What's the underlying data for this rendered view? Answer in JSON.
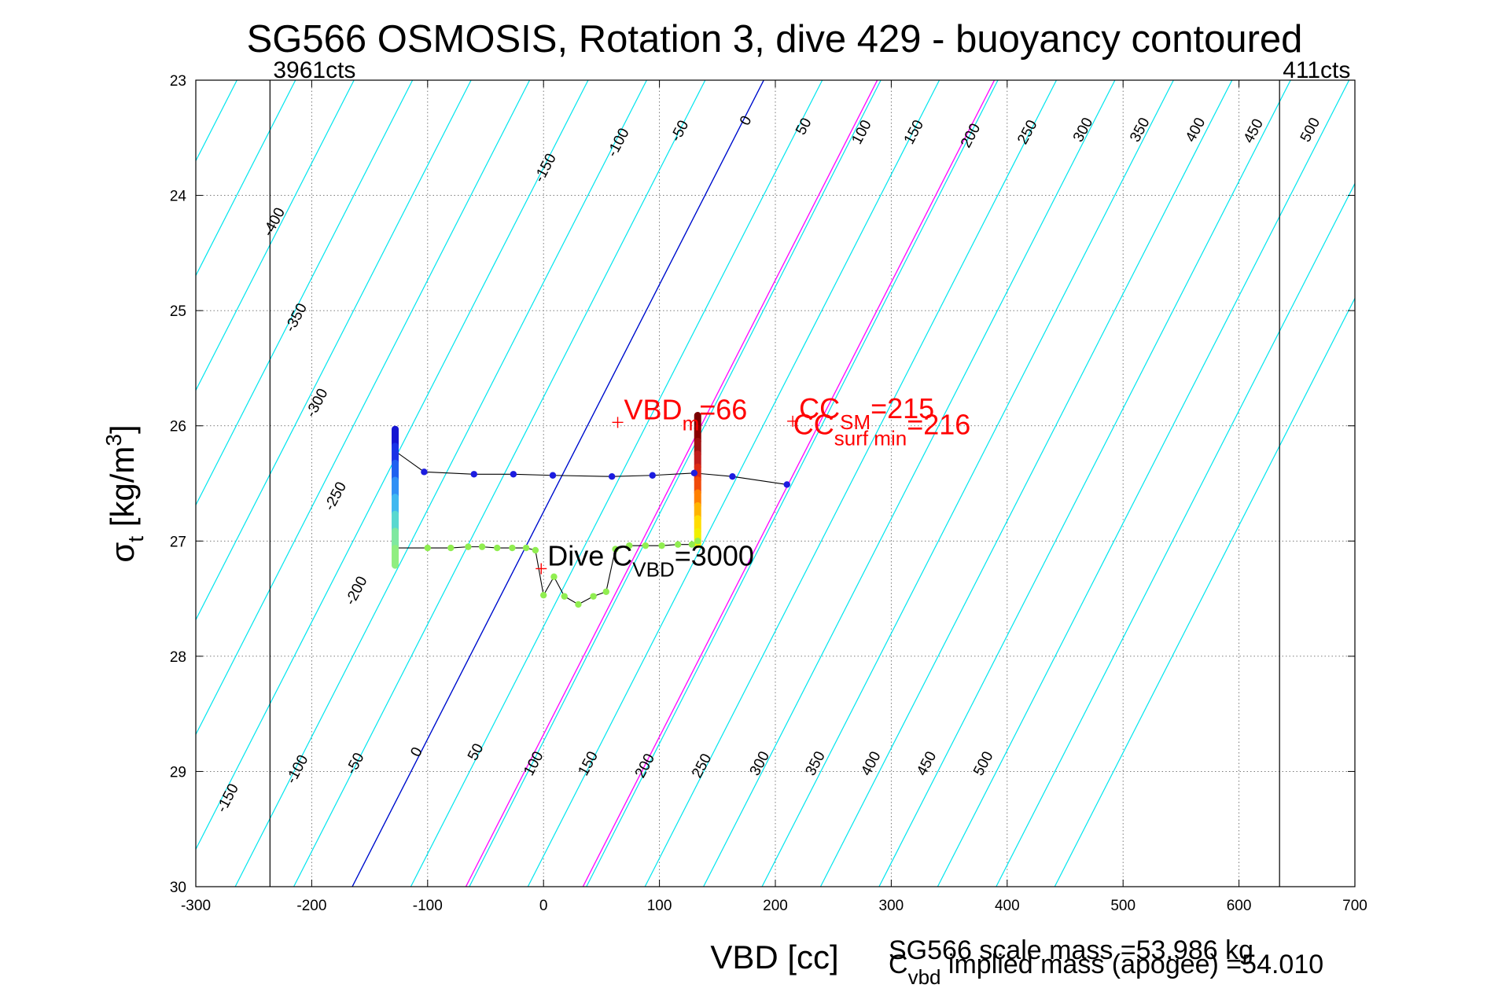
{
  "chart_data": {
    "type": "scatter",
    "title": "SG566 OSMOSIS, Rotation 3, dive 429 - buoyancy contoured",
    "xlabel": "VBD [cc]",
    "ylabel": {
      "main": "σ",
      "sub": "t",
      "unit_open": " [kg/m",
      "unit_sup": "3",
      "unit_close": "]"
    },
    "xlim": [
      -300,
      700
    ],
    "ylim": [
      23,
      30
    ],
    "y_reversed": true,
    "grid": true,
    "x_ticks": [
      -300,
      -200,
      -100,
      0,
      100,
      200,
      300,
      400,
      500,
      600,
      700
    ],
    "y_ticks": [
      23,
      24,
      25,
      26,
      27,
      28,
      29,
      30
    ],
    "count_lines": [
      {
        "x": -236,
        "label": "3961cts"
      },
      {
        "x": 635,
        "label": "411cts"
      }
    ],
    "contours": {
      "note": "lines of constant buoyancy; upper label row at sigma 23.4, lower row at sigma 29",
      "upper": [
        {
          "value": -400,
          "x": -229,
          "y": 24.25
        },
        {
          "value": -350,
          "x": -210,
          "y": 25.08
        },
        {
          "value": -300,
          "x": -192,
          "y": 25.82
        },
        {
          "value": -250,
          "x": -176,
          "y": 26.63
        },
        {
          "value": -200,
          "x": -158,
          "y": 27.45
        },
        {
          "value": -150,
          "x": 5,
          "y": 23.78
        },
        {
          "value": -100,
          "x": 68,
          "y": 23.56
        },
        {
          "value": -50,
          "x": 121,
          "y": 23.46
        },
        {
          "value": 0,
          "x": 178,
          "y": 23.37
        },
        {
          "value": 50,
          "x": 228,
          "y": 23.42
        },
        {
          "value": 100,
          "x": 278,
          "y": 23.47
        },
        {
          "value": 150,
          "x": 323,
          "y": 23.47
        },
        {
          "value": 200,
          "x": 372,
          "y": 23.5
        },
        {
          "value": 250,
          "x": 421,
          "y": 23.47
        },
        {
          "value": 300,
          "x": 469,
          "y": 23.45
        },
        {
          "value": 350,
          "x": 518,
          "y": 23.45
        },
        {
          "value": 400,
          "x": 566,
          "y": 23.45
        },
        {
          "value": 450,
          "x": 616,
          "y": 23.46
        },
        {
          "value": 500,
          "x": 665,
          "y": 23.45
        }
      ],
      "lower": [
        {
          "value": -150,
          "x": -269,
          "y": 29.25
        },
        {
          "value": -100,
          "x": -209,
          "y": 29.0
        },
        {
          "value": -50,
          "x": -159,
          "y": 28.95
        },
        {
          "value": 0,
          "x": -106,
          "y": 28.85
        },
        {
          "value": 50,
          "x": -55,
          "y": 28.85
        },
        {
          "value": 100,
          "x": -5,
          "y": 28.95
        },
        {
          "value": 150,
          "x": 42,
          "y": 28.95
        },
        {
          "value": 200,
          "x": 91,
          "y": 28.97
        },
        {
          "value": 250,
          "x": 140,
          "y": 28.97
        },
        {
          "value": 300,
          "x": 190,
          "y": 28.95
        },
        {
          "value": 350,
          "x": 238,
          "y": 28.95
        },
        {
          "value": 400,
          "x": 286,
          "y": 28.95
        },
        {
          "value": 450,
          "x": 334,
          "y": 28.95
        },
        {
          "value": 500,
          "x": 383,
          "y": 28.95
        }
      ]
    },
    "highlight_contours": [
      {
        "color": "#0000cc",
        "points": [
          [
            -165,
            30
          ],
          [
            190,
            23
          ]
        ]
      },
      {
        "color": "#ff00ff",
        "points": [
          [
            -67,
            30
          ],
          [
            288,
            23
          ]
        ]
      },
      {
        "color": "#ff00ff",
        "points": [
          [
            34,
            30
          ],
          [
            389,
            23
          ]
        ]
      }
    ],
    "series": [
      {
        "kind": "track",
        "color": "#000000",
        "points": [
          [
            -128,
            26.22
          ],
          [
            -103,
            26.4
          ],
          [
            -60,
            26.42
          ],
          [
            -26,
            26.42
          ],
          [
            8,
            26.43
          ],
          [
            59,
            26.44
          ],
          [
            94,
            26.43
          ],
          [
            130,
            26.41
          ],
          [
            163,
            26.44
          ],
          [
            210,
            26.51
          ]
        ]
      },
      {
        "kind": "track",
        "color": "#000000",
        "points": [
          [
            -128,
            27.06
          ],
          [
            -100,
            27.06
          ],
          [
            -80,
            27.06
          ],
          [
            -65,
            27.05
          ],
          [
            -53,
            27.05
          ],
          [
            -40,
            27.06
          ],
          [
            -27,
            27.06
          ],
          [
            -15,
            27.06
          ],
          [
            -7,
            27.08
          ],
          [
            0,
            27.47
          ],
          [
            9,
            27.31
          ],
          [
            18,
            27.48
          ],
          [
            30,
            27.55
          ],
          [
            43,
            27.48
          ],
          [
            54,
            27.44
          ],
          [
            62,
            27.07
          ],
          [
            74,
            27.04
          ],
          [
            88,
            27.04
          ],
          [
            102,
            27.04
          ],
          [
            116,
            27.03
          ],
          [
            128,
            27.03
          ],
          [
            133,
            27.0
          ]
        ]
      },
      {
        "kind": "markers",
        "color": "#1c1ce0",
        "points": [
          [
            -103,
            26.4
          ],
          [
            -60,
            26.42
          ],
          [
            -26,
            26.42
          ],
          [
            8,
            26.43
          ],
          [
            59,
            26.44
          ],
          [
            94,
            26.43
          ],
          [
            130,
            26.41
          ],
          [
            163,
            26.44
          ],
          [
            210,
            26.51
          ]
        ]
      },
      {
        "kind": "markers",
        "color": "#90ee50",
        "points": [
          [
            -100,
            27.06
          ],
          [
            -80,
            27.06
          ],
          [
            -65,
            27.05
          ],
          [
            -53,
            27.05
          ],
          [
            -40,
            27.06
          ],
          [
            -27,
            27.06
          ],
          [
            -15,
            27.06
          ],
          [
            -7,
            27.08
          ],
          [
            0,
            27.47
          ],
          [
            9,
            27.31
          ],
          [
            18,
            27.48
          ],
          [
            30,
            27.55
          ],
          [
            43,
            27.48
          ],
          [
            54,
            27.44
          ],
          [
            62,
            27.07
          ],
          [
            74,
            27.04
          ],
          [
            88,
            27.04
          ],
          [
            102,
            27.04
          ],
          [
            116,
            27.03
          ],
          [
            128,
            27.03
          ],
          [
            133,
            27.0
          ]
        ]
      }
    ],
    "column_left": {
      "x": -128,
      "y_top": 26.03,
      "y_bottom": 27.21,
      "colors": [
        "#1414d2",
        "#1a32e6",
        "#2060f0",
        "#3090f5",
        "#40b8f0",
        "#5ad8d0",
        "#80e8a0",
        "#90ee80"
      ]
    },
    "column_right": {
      "x": 133,
      "y_top": 25.91,
      "y_bottom": 27.03,
      "colors": [
        "#7a0000",
        "#8a0000",
        "#a01010",
        "#c01c1c",
        "#dc2a14",
        "#f04a0a",
        "#ff8000",
        "#ffb400",
        "#ffdc00",
        "#f0f000"
      ]
    },
    "annotations": [
      {
        "text": "VBD",
        "sub": "m",
        "after": "=66",
        "color": "#ff0000",
        "x": 64,
        "y": 25.97,
        "marker": true
      },
      {
        "text": "CC",
        "sub": "SM",
        "after": "=215",
        "color": "#ff0000",
        "x": 215,
        "y": 25.96,
        "marker": true
      },
      {
        "text": "CC",
        "sub": "surf min",
        "after": "=216",
        "color": "#ff0000",
        "x": 210,
        "y": 26.1,
        "marker": false
      },
      {
        "text": "Dive C",
        "sub": "VBD",
        "after": "=3000",
        "color": "#000000",
        "x": -2,
        "y": 27.24,
        "marker": true
      }
    ],
    "footer": [
      {
        "text": "SG566 scale mass =53.986 kg"
      },
      {
        "text": "C",
        "sub": "vbd",
        "after": " implied mass (apogee) =54.010"
      }
    ]
  }
}
